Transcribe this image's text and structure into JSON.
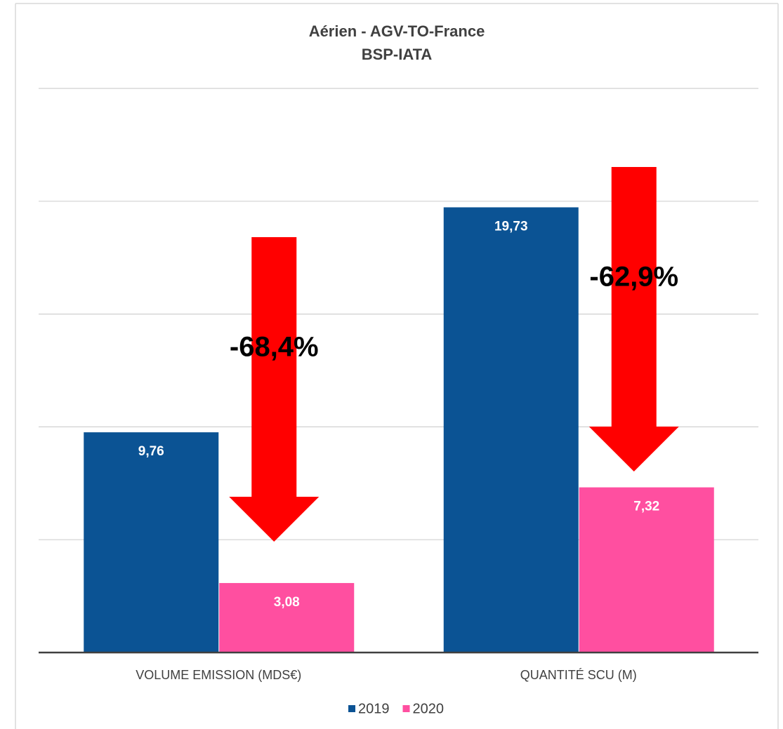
{
  "chart_data": {
    "type": "bar",
    "title": "Aérien - AGV-TO-France",
    "subtitle": "BSP-IATA",
    "categories": [
      "VOLUME EMISSION (MDS€)",
      "QUANTITÉ SCU (M)"
    ],
    "series": [
      {
        "name": "2019",
        "color": "#0b5394",
        "values": [
          9.76,
          19.73
        ],
        "value_labels": [
          "9,76",
          "19,73"
        ]
      },
      {
        "name": "2020",
        "color": "#ff4fa0",
        "values": [
          3.08,
          7.32
        ],
        "value_labels": [
          "3,08",
          "7,32"
        ]
      }
    ],
    "annotations": [
      "-68,4%",
      "-62,9%"
    ],
    "ylim": [
      0,
      25
    ],
    "yticks": [
      0,
      5,
      10,
      15,
      20,
      25
    ],
    "grid": true,
    "legend": "bottom"
  }
}
